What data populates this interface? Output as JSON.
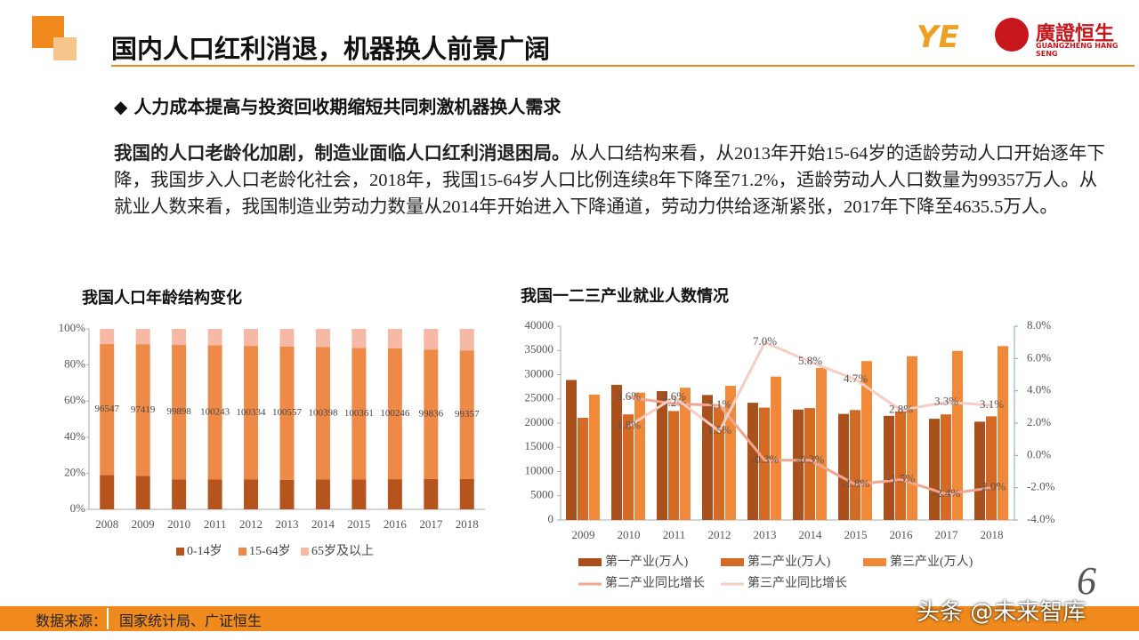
{
  "header": {
    "title": "国内人口红利消退，机器换人前景广阔",
    "logo_name": "廣證恒生",
    "logo_sub": "GUANGZHENG HANG SENG"
  },
  "bullet": "人力成本提高与投资回收期缩短共同刺激机器换人需求",
  "paragraph": {
    "lead": "我国的人口老龄化加剧，制造业面临人口红利消退困局。",
    "body": "从人口结构来看，从2013年开始15-64岁的适龄劳动人口开始逐年下降，我国步入人口老龄化社会，2018年，我国15-64岁人口比例连续8年下降至71.2%，适龄劳动人人口数量为99357万人。从就业人数来看，我国制造业劳动力数量从2014年开始进入下降通道，劳动力供给逐渐紧张，2017年下降至4635.5万人。"
  },
  "chart_data": [
    {
      "type": "stacked_bar",
      "title": "我国人口年龄结构变化",
      "categories": [
        "2008",
        "2009",
        "2010",
        "2011",
        "2012",
        "2013",
        "2014",
        "2015",
        "2016",
        "2017",
        "2018"
      ],
      "series": [
        {
          "name": "0-14岁",
          "color": "#b5541c",
          "values": [
            19.0,
            18.5,
            16.6,
            16.5,
            16.5,
            16.4,
            16.5,
            16.5,
            16.7,
            16.8,
            16.9
          ]
        },
        {
          "name": "15-64岁",
          "color": "#ee8a48",
          "values": [
            72.7,
            73.0,
            74.5,
            74.4,
            74.1,
            73.9,
            73.4,
            73.0,
            72.5,
            71.8,
            71.2
          ],
          "point_labels": [
            96547,
            97419,
            99898,
            100243,
            100334,
            100557,
            100398,
            100361,
            100246,
            99836,
            99357
          ]
        },
        {
          "name": "65岁及以上",
          "color": "#f6b9a6",
          "values": [
            8.3,
            8.5,
            8.9,
            9.1,
            9.4,
            9.7,
            10.1,
            10.5,
            10.8,
            11.4,
            11.9
          ]
        }
      ],
      "ylim": [
        0,
        100
      ],
      "yticks": [
        {
          "value": 0,
          "label": "0%"
        },
        {
          "value": 20,
          "label": "20%"
        },
        {
          "value": 40,
          "label": "40%"
        },
        {
          "value": 60,
          "label": "60%"
        },
        {
          "value": 80,
          "label": "80%"
        },
        {
          "value": 100,
          "label": "100%"
        }
      ],
      "legend": "bottom"
    },
    {
      "type": "combo",
      "title": "我国一二三产业就业人数情况",
      "categories": [
        "2009",
        "2010",
        "2011",
        "2012",
        "2013",
        "2014",
        "2015",
        "2016",
        "2017",
        "2018"
      ],
      "series": [
        {
          "name": "第一产业(万人)",
          "kind": "bar",
          "color": "#a9501c",
          "values": [
            28900,
            27900,
            26600,
            25800,
            24200,
            22800,
            21900,
            21500,
            20900,
            20300
          ]
        },
        {
          "name": "第二产业(万人)",
          "kind": "bar",
          "color": "#d46a24",
          "values": [
            21100,
            21800,
            22500,
            23200,
            23200,
            23100,
            22700,
            22400,
            21800,
            21400
          ]
        },
        {
          "name": "第三产业(万人)",
          "kind": "bar",
          "color": "#f08a3a",
          "values": [
            25900,
            26300,
            27300,
            27700,
            29600,
            31400,
            32800,
            33800,
            34900,
            35900
          ]
        },
        {
          "name": "第二产业同比增长",
          "kind": "line",
          "axis": "y2",
          "color": "#f2a58f",
          "values": [
            null,
            3.6,
            3.2,
            3.1,
            -0.3,
            -0.3,
            -1.8,
            -1.5,
            -2.4,
            -2.0
          ],
          "value_labels": [
            null,
            "3.6%",
            "3.2%",
            "3.1%",
            "-0.3%",
            "-0.3%",
            "-1.8%",
            "-1.5%",
            "-2.4%",
            "-2.0%"
          ]
        },
        {
          "name": "第三产业同比增长",
          "kind": "line",
          "axis": "y2",
          "color": "#f6cdc4",
          "values": [
            null,
            1.8,
            3.6,
            1.5,
            7.0,
            5.8,
            4.7,
            2.8,
            3.3,
            3.1
          ],
          "value_labels": [
            null,
            "1.8%",
            "3.6%",
            "1.5%",
            "7.0%",
            "5.8%",
            "4.7%",
            "2.8%",
            "3.3%",
            "3.1%"
          ]
        }
      ],
      "ylim": [
        0,
        40000
      ],
      "yticks": [
        0,
        5000,
        10000,
        15000,
        20000,
        25000,
        30000,
        35000,
        40000
      ],
      "y2lim": [
        -4,
        8
      ],
      "y2ticks": [
        {
          "value": -4,
          "label": "-4.0%"
        },
        {
          "value": -2,
          "label": "-2.0%"
        },
        {
          "value": 0,
          "label": "0.0%"
        },
        {
          "value": 2,
          "label": "2.0%"
        },
        {
          "value": 4,
          "label": "4.0%"
        },
        {
          "value": 6,
          "label": "6.0%"
        },
        {
          "value": 8,
          "label": "8.0%"
        }
      ],
      "legend": "bottom"
    }
  ],
  "footer": {
    "label": "数据来源：",
    "source": "国家统计局、广证恒生"
  },
  "page_number": "6",
  "watermark": "头条 @未来智库"
}
